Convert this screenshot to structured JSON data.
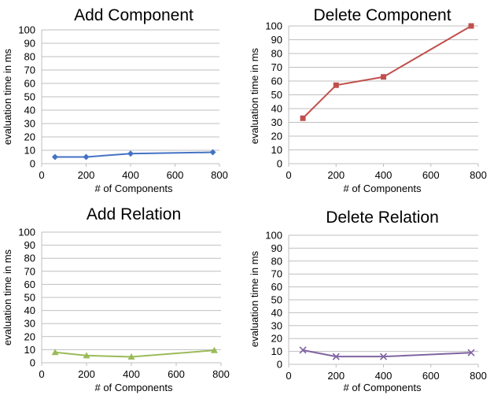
{
  "chart_data": [
    {
      "type": "line",
      "title": "Add Component",
      "xlabel": "# of Components",
      "ylabel": "evaluation time in ms",
      "xlim": [
        0,
        800
      ],
      "ylim": [
        0,
        100
      ],
      "xticks": [
        "0",
        "200",
        "400",
        "600",
        "800"
      ],
      "yticks": [
        "0",
        "10",
        "20",
        "30",
        "40",
        "50",
        "60",
        "70",
        "80",
        "90",
        "100"
      ],
      "grid": true,
      "series": [
        {
          "marker": "diamond",
          "color": "#4472C4",
          "points": [
            {
              "x": 60,
              "y": 5
            },
            {
              "x": 200,
              "y": 5
            },
            {
              "x": 400,
              "y": 7.5
            },
            {
              "x": 770,
              "y": 8.5
            }
          ]
        }
      ]
    },
    {
      "type": "line",
      "title": "Delete Component",
      "xlabel": "# of Components",
      "ylabel": "evaluation time in ms",
      "xlim": [
        0,
        800
      ],
      "ylim": [
        0,
        100
      ],
      "xticks": [
        "0",
        "200",
        "400",
        "600",
        "800"
      ],
      "yticks": [
        "0",
        "10",
        "20",
        "30",
        "40",
        "50",
        "60",
        "70",
        "80",
        "90",
        "100"
      ],
      "grid": true,
      "series": [
        {
          "marker": "square",
          "color": "#C0504D",
          "points": [
            {
              "x": 60,
              "y": 33
            },
            {
              "x": 200,
              "y": 57
            },
            {
              "x": 400,
              "y": 63
            },
            {
              "x": 770,
              "y": 100
            }
          ]
        }
      ]
    },
    {
      "type": "line",
      "title": "Add Relation",
      "xlabel": "# of Components",
      "ylabel": "evaluation time in ms",
      "xlim": [
        0,
        800
      ],
      "ylim": [
        0,
        100
      ],
      "xticks": [
        "0",
        "200",
        "400",
        "600",
        "800"
      ],
      "yticks": [
        "0",
        "10",
        "20",
        "30",
        "40",
        "50",
        "60",
        "70",
        "80",
        "90",
        "100"
      ],
      "grid": true,
      "series": [
        {
          "marker": "triangle",
          "color": "#9BBB59",
          "points": [
            {
              "x": 60,
              "y": 8
            },
            {
              "x": 200,
              "y": 5.5
            },
            {
              "x": 400,
              "y": 4.5
            },
            {
              "x": 770,
              "y": 9.5
            }
          ]
        }
      ]
    },
    {
      "type": "line",
      "title": "Delete Relation",
      "xlabel": "# of Components",
      "ylabel": "evaluation time in ms",
      "xlim": [
        0,
        800
      ],
      "ylim": [
        0,
        100
      ],
      "xticks": [
        "0",
        "200",
        "400",
        "600",
        "800"
      ],
      "yticks": [
        "0",
        "10",
        "20",
        "30",
        "40",
        "50",
        "60",
        "70",
        "80",
        "90",
        "100"
      ],
      "grid": true,
      "series": [
        {
          "marker": "x",
          "color": "#8064A2",
          "points": [
            {
              "x": 60,
              "y": 11
            },
            {
              "x": 200,
              "y": 6
            },
            {
              "x": 400,
              "y": 6
            },
            {
              "x": 770,
              "y": 9
            }
          ]
        }
      ]
    }
  ]
}
